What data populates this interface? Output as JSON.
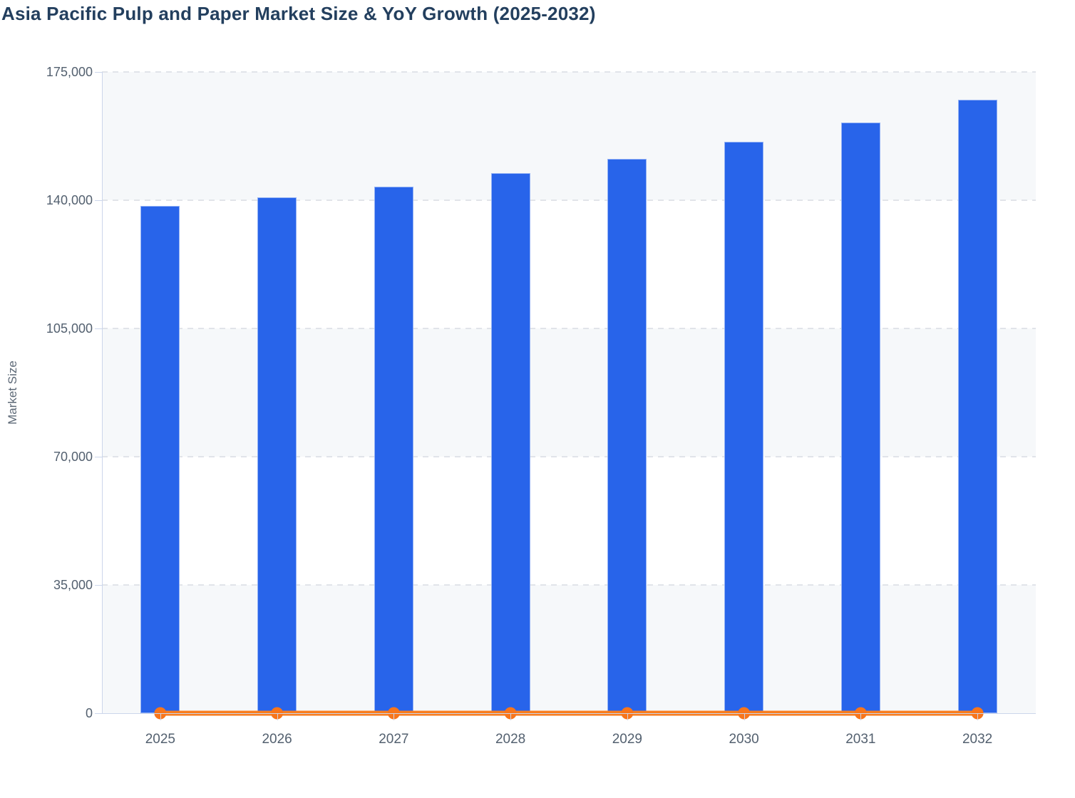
{
  "title": "Asia Pacific Pulp and Paper Market Size & YoY Growth (2025-2032)",
  "y_axis": {
    "title": "Market Size",
    "tick_labels": [
      "0",
      "35,000",
      "70,000",
      "105,000",
      "140,000",
      "175,000"
    ]
  },
  "x_axis": {
    "tick_labels": [
      "2025",
      "2026",
      "2027",
      "2028",
      "2029",
      "2030",
      "2031",
      "2032"
    ]
  },
  "colors": {
    "background": "#ffffff",
    "bar-fill": "#2864ea",
    "bar-border": "rgba(255,255,255,0.5)",
    "line-stroke": "#f97d1e",
    "marker-fill": "#f8751b",
    "title-text": "#233f5e",
    "axis-text": "#53606f",
    "axis-title-text": "#5c6876",
    "axis-line": "#ccd6eb",
    "grid-line": "#e1e4e9",
    "band-fill": "#f6f8fa"
  },
  "chart_data": {
    "type": "bar",
    "title": "Asia Pacific Pulp and Paper Market Size & YoY Growth (2025-2032)",
    "categories": [
      "2025",
      "2026",
      "2027",
      "2028",
      "2029",
      "2030",
      "2031",
      "2032"
    ],
    "series": [
      {
        "name": "Market Size",
        "type": "bar",
        "color": "#2864ea",
        "values": [
          138500,
          140800,
          143700,
          147400,
          151300,
          155900,
          161200,
          167400
        ]
      },
      {
        "name": "YoY Growth",
        "type": "line",
        "color": "#f97d1e",
        "plotted_values_on_primary_axis": [
          0,
          0,
          0,
          0,
          0,
          0,
          0,
          0
        ]
      }
    ],
    "xlabel": "",
    "ylabel": "Market Size",
    "ylim": [
      0,
      175000
    ],
    "yticks": [
      0,
      35000,
      70000,
      105000,
      140000,
      175000
    ],
    "grid": "horizontal-dashed",
    "alternating_bands": true,
    "legend_position": "none"
  }
}
